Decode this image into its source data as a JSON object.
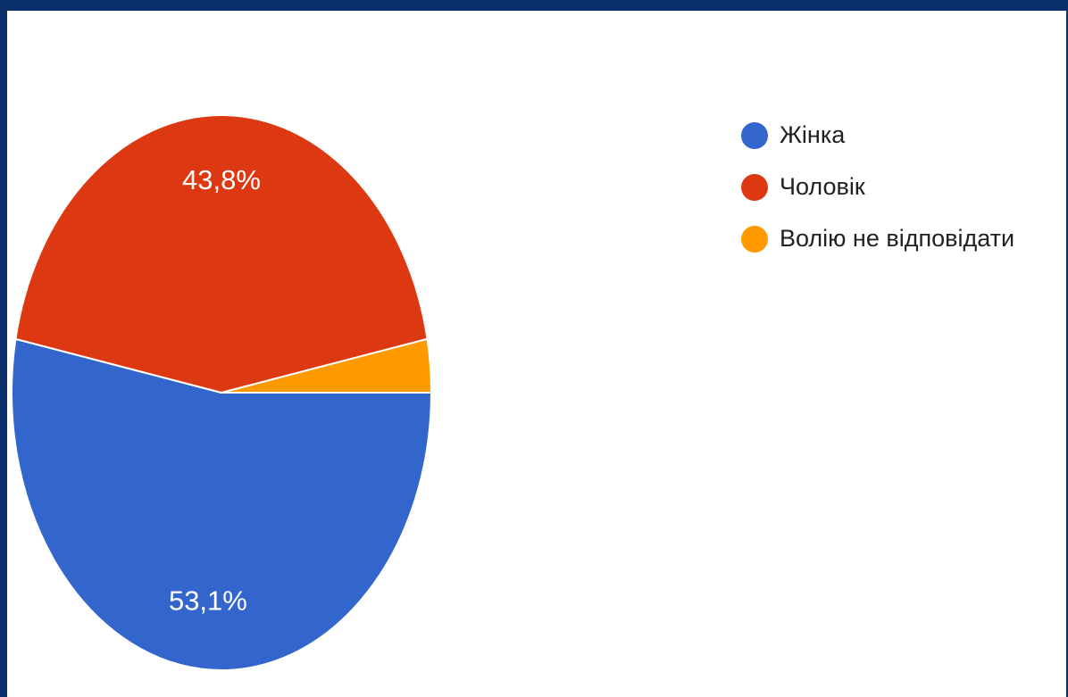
{
  "chart_data": {
    "type": "pie",
    "slices": [
      {
        "label": "Жінка",
        "value": 53.1,
        "display": "53,1%",
        "color": "#3366cc"
      },
      {
        "label": "Чоловік",
        "value": 43.8,
        "display": "43,8%",
        "color": "#dc3912"
      },
      {
        "label": "Волію не відповідати",
        "value": 3.1,
        "display": "",
        "color": "#ff9900"
      }
    ],
    "start_angle_deg": 0,
    "direction": "clockwise",
    "legend_position": "right",
    "legend": [
      "Жінка",
      "Чоловік",
      "Волію не відповідати"
    ]
  }
}
